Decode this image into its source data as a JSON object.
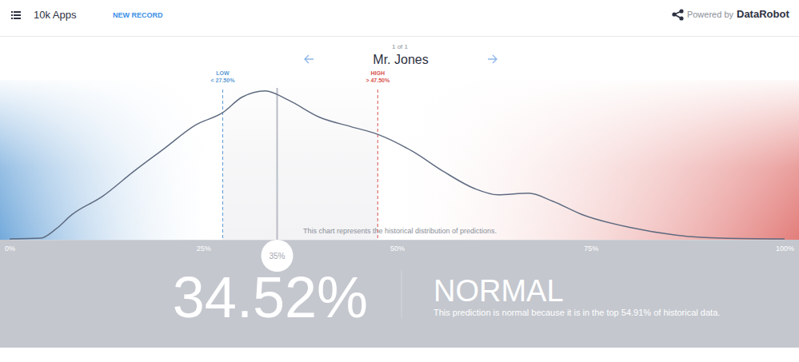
{
  "header": {
    "app": "10k Apps",
    "action": "NEW RECORD",
    "powered_by": "Powered by",
    "brand": "DataRobot"
  },
  "navigator": {
    "counter": "1 of 1",
    "record": "Mr. Jones"
  },
  "result": {
    "status": "NORMAL",
    "explanation": "This prediction is normal because it is in the top 54.91% of historical data."
  },
  "chart_data": {
    "type": "line",
    "annotation": "This chart represents the historical distribution of predictions.",
    "x": [
      0,
      4,
      6,
      8,
      12,
      16,
      20,
      24,
      27.5,
      30,
      33,
      36,
      40,
      44,
      47.5,
      52,
      56,
      60,
      63,
      67,
      70,
      74,
      80,
      86,
      92,
      100
    ],
    "values": [
      0.5,
      1,
      7,
      16,
      28,
      44,
      59,
      74,
      82,
      92,
      96,
      90,
      79,
      73,
      68,
      57,
      44,
      33,
      29,
      30,
      25,
      16,
      8,
      3,
      1,
      0.5
    ],
    "color": "#5f6b80",
    "xlim": [
      0,
      100
    ],
    "xticks": [
      {
        "value": 0,
        "label": "0%"
      },
      {
        "value": 25,
        "label": "25%"
      },
      {
        "value": 50,
        "label": "50%"
      },
      {
        "value": 75,
        "label": "75%"
      },
      {
        "value": 100,
        "label": "100%"
      }
    ],
    "ylim": [
      0,
      100
    ],
    "tick_labels": "x",
    "thresholds": [
      {
        "name": "LOW",
        "value": 27.5,
        "label": "< 27.50%",
        "color": "#5b9bd5"
      },
      {
        "name": "HIGH",
        "value": 47.5,
        "label": "> 47.50%",
        "color": "#d9534f"
      }
    ],
    "prediction": {
      "value": 34.52,
      "label": "34.52%",
      "marker_label": "35%"
    }
  }
}
